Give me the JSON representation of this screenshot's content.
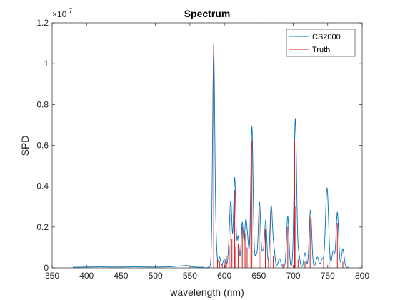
{
  "chart_data": {
    "type": "line",
    "title": "Spectrum",
    "xlabel": "wavelength (nm)",
    "ylabel": "SPD",
    "y_exponent_label": "×10",
    "y_exponent_power": "-7",
    "xlim": [
      350,
      800
    ],
    "ylim": [
      0,
      1.2
    ],
    "xticks": [
      350,
      400,
      450,
      500,
      550,
      600,
      650,
      700,
      750,
      800
    ],
    "xtick_labels": [
      "350",
      "400",
      "450",
      "500",
      "550",
      "600",
      "650",
      "700",
      "750",
      "800"
    ],
    "yticks": [
      0,
      0.2,
      0.4,
      0.6,
      0.8,
      1.0,
      1.2
    ],
    "ytick_labels": [
      "0",
      "0.2",
      "0.4",
      "0.6",
      "0.8",
      "1",
      "1.2"
    ],
    "grid": false,
    "legend_position": "top-right",
    "series": [
      {
        "name": "CS2000",
        "color": "#0072BD",
        "style": "line",
        "noise_floor": [
          [
            380,
            0.003
          ],
          [
            395,
            0.004
          ],
          [
            420,
            0.005
          ],
          [
            440,
            0.004
          ],
          [
            470,
            0.005
          ],
          [
            500,
            0.004
          ],
          [
            520,
            0.005
          ],
          [
            545,
            0.012
          ],
          [
            555,
            0.004
          ],
          [
            570,
            0.003
          ]
        ],
        "peaks": [
          [
            584.5,
            1.07,
            1.6
          ],
          [
            588,
            0.09,
            1.3
          ],
          [
            593,
            0.05,
            1.5
          ],
          [
            600,
            0.04,
            2.0
          ],
          [
            607,
            0.09,
            1.5
          ],
          [
            609.5,
            0.3,
            1.6
          ],
          [
            615,
            0.44,
            1.6
          ],
          [
            620,
            0.15,
            1.5
          ],
          [
            626,
            0.22,
            1.6
          ],
          [
            631,
            0.22,
            1.6
          ],
          [
            634,
            0.11,
            1.5
          ],
          [
            640,
            0.69,
            1.7
          ],
          [
            646,
            0.06,
            1.5
          ],
          [
            651,
            0.32,
            1.7
          ],
          [
            656,
            0.07,
            1.5
          ],
          [
            660,
            0.23,
            1.6
          ],
          [
            668,
            0.3,
            1.8
          ],
          [
            672,
            0.08,
            1.6
          ],
          [
            680,
            0.04,
            2.0
          ],
          [
            692,
            0.25,
            1.7
          ],
          [
            703,
            0.73,
            1.8
          ],
          [
            708,
            0.06,
            1.6
          ],
          [
            717,
            0.07,
            1.6
          ],
          [
            725,
            0.28,
            1.8
          ],
          [
            735,
            0.05,
            2.0
          ],
          [
            742,
            0.04,
            1.8
          ],
          [
            749,
            0.39,
            2.2
          ],
          [
            758,
            0.08,
            1.8
          ],
          [
            764,
            0.27,
            1.8
          ],
          [
            772,
            0.09,
            1.8
          ]
        ]
      },
      {
        "name": "Truth",
        "color": "#D7191C",
        "style": "stem",
        "lines": [
          [
            584.5,
            1.1
          ],
          [
            588,
            0.11
          ],
          [
            590,
            0.04
          ],
          [
            593,
            0.03
          ],
          [
            597,
            0.02
          ],
          [
            601,
            0.03
          ],
          [
            603,
            0.06
          ],
          [
            607,
            0.11
          ],
          [
            609.5,
            0.26
          ],
          [
            611,
            0.14
          ],
          [
            615,
            0.38
          ],
          [
            616.5,
            0.1
          ],
          [
            620,
            0.12
          ],
          [
            626,
            0.2
          ],
          [
            630,
            0.17
          ],
          [
            633,
            0.1
          ],
          [
            638.5,
            0.35
          ],
          [
            640,
            0.62
          ],
          [
            646,
            0.04
          ],
          [
            650.5,
            0.29
          ],
          [
            653,
            0.08
          ],
          [
            659.5,
            0.19
          ],
          [
            664,
            0.04
          ],
          [
            667.5,
            0.28
          ],
          [
            671,
            0.06
          ],
          [
            685,
            0.02
          ],
          [
            692,
            0.2
          ],
          [
            702,
            0.62
          ],
          [
            703.5,
            0.3
          ],
          [
            707,
            0.04
          ],
          [
            717,
            0.03
          ],
          [
            724.5,
            0.25
          ],
          [
            744,
            0.04
          ],
          [
            752,
            0.06
          ],
          [
            764,
            0.22
          ],
          [
            772,
            0.03
          ]
        ]
      }
    ]
  }
}
